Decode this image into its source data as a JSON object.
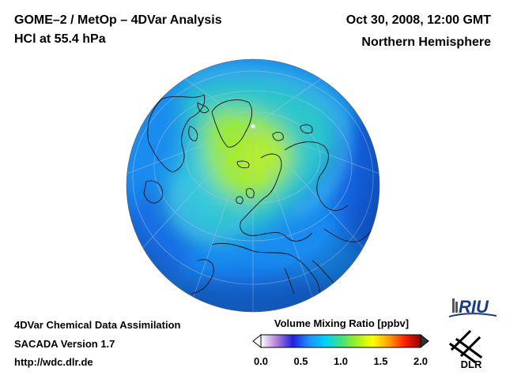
{
  "header": {
    "title_line1": "GOME–2 / MetOp – 4DVar Analysis",
    "title_line2": "HCl at 55.4 hPa",
    "date": "Oct 30, 2008, 12:00 GMT",
    "region": "Northern Hemisphere"
  },
  "footer": {
    "line1": "4DVar Chemical Data Assimilation",
    "line2": "SACADA Version 1.7",
    "line3": "http://wdc.dlr.de"
  },
  "colorbar": {
    "title": "Volume Mixing Ratio [ppbv]",
    "min": 0.0,
    "max": 2.0,
    "ticks": [
      "0.0",
      "0.5",
      "1.0",
      "1.5",
      "2.0"
    ],
    "colors": [
      "#ffffff",
      "#b07ed8",
      "#2020e0",
      "#1e90ff",
      "#00d0ff",
      "#40e080",
      "#a0f020",
      "#ffff00",
      "#ffa000",
      "#ff2000",
      "#900000"
    ]
  },
  "map": {
    "projection": "orthographic",
    "hemisphere": "north",
    "colors": {
      "base": "#1a8cf0",
      "high": "#a8f020",
      "mid": "#30d8c0",
      "low": "#1050d8",
      "coast": "#101010",
      "grid": "#a8c4e8"
    }
  },
  "logos": {
    "riu": "RIU",
    "dlr": "DLR"
  }
}
